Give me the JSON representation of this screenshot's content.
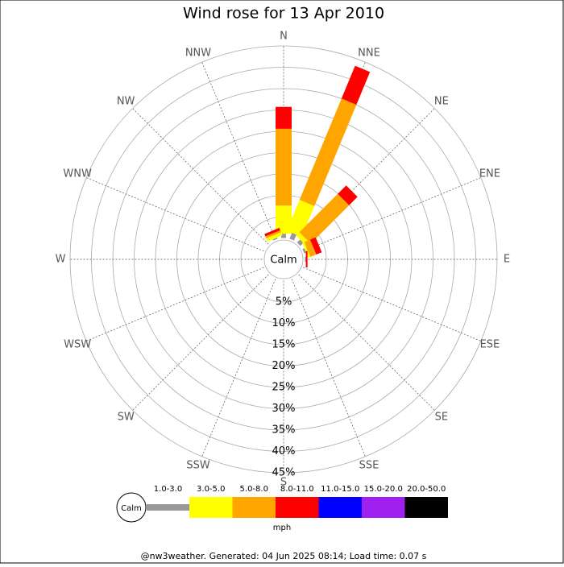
{
  "chart_data": {
    "type": "windrose",
    "title": "Wind rose for 13 Apr 2010",
    "categories": [
      "N",
      "NNE",
      "NE",
      "ENE",
      "E",
      "ESE",
      "SE",
      "SSE",
      "S",
      "SSW",
      "SW",
      "WSW",
      "W",
      "WNW",
      "NW",
      "NNW"
    ],
    "series": [
      {
        "name": "1.0-3.0",
        "color": "#999999",
        "values": [
          1,
          1.5,
          1,
          0.5,
          0.2,
          0,
          0,
          0,
          0,
          0,
          0,
          0,
          0,
          0,
          0,
          0.3
        ]
      },
      {
        "name": "3.0-5.0",
        "color": "#ffff00",
        "values": [
          6.6,
          7.8,
          1.1,
          0.5,
          0,
          0,
          0,
          0,
          0,
          0,
          0,
          0,
          0,
          0,
          0,
          0.8
        ]
      },
      {
        "name": "5.0-8.0",
        "color": "#ffa500",
        "values": [
          18,
          25.7,
          12.7,
          1.5,
          0,
          0,
          0,
          0,
          0,
          0,
          0,
          0,
          0,
          0,
          0,
          0.5
        ]
      },
      {
        "name": "8.0-11.0",
        "color": "#ff0000",
        "values": [
          5.1,
          8.3,
          2.8,
          1.4,
          0.4,
          0,
          0,
          0,
          0,
          0,
          0,
          0,
          0,
          0,
          0,
          0.6
        ]
      },
      {
        "name": "11.0-15.0",
        "color": "#0000ff",
        "values": [
          0,
          0,
          0,
          0,
          0,
          0,
          0,
          0,
          0,
          0,
          0,
          0,
          0,
          0,
          0,
          0
        ]
      },
      {
        "name": "15.0-20.0",
        "color": "#a020f0",
        "values": [
          0,
          0,
          0,
          0,
          0,
          0,
          0,
          0,
          0,
          0,
          0,
          0,
          0,
          0,
          0,
          0
        ]
      },
      {
        "name": "20.0-50.0",
        "color": "#000000",
        "values": [
          0,
          0,
          0,
          0,
          0,
          0,
          0,
          0,
          0,
          0,
          0,
          0,
          0,
          0,
          0,
          0
        ]
      }
    ],
    "ylim": [
      0,
      45
    ],
    "yticks": [
      {
        "value": 5,
        "label": "5%"
      },
      {
        "value": 10,
        "label": "10%"
      },
      {
        "value": 15,
        "label": "15%"
      },
      {
        "value": 20,
        "label": "20%"
      },
      {
        "value": 25,
        "label": "25%"
      },
      {
        "value": 30,
        "label": "30%"
      },
      {
        "value": 35,
        "label": "35%"
      },
      {
        "value": 40,
        "label": "40%"
      },
      {
        "value": 45,
        "label": "45%"
      }
    ],
    "calm_label": "Calm",
    "legend_title": "mph",
    "footer": "@nw3weather. Generated: 04 Jun 2025 08:14; Load time: 0.07 s"
  }
}
